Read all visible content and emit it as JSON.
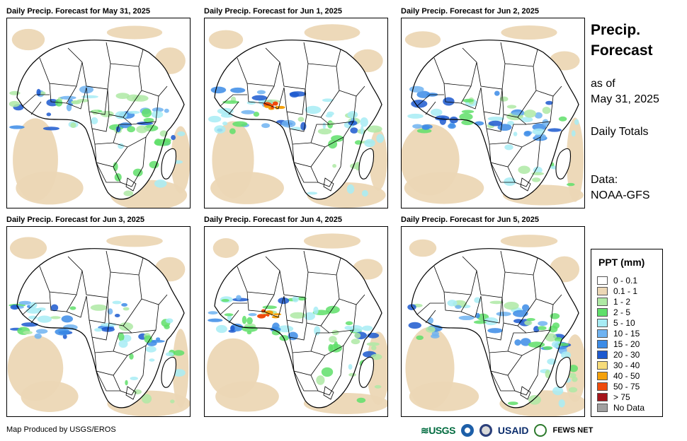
{
  "panels": [
    {
      "title": "Daily Precip. Forecast for May 31, 2025"
    },
    {
      "title": "Daily Precip. Forecast for Jun 1, 2025"
    },
    {
      "title": "Daily Precip. Forecast for Jun 2, 2025"
    },
    {
      "title": "Daily Precip. Forecast for Jun 3, 2025"
    },
    {
      "title": "Daily Precip. Forecast for Jun 4, 2025"
    },
    {
      "title": "Daily Precip. Forecast for Jun 5, 2025"
    }
  ],
  "side": {
    "title_line1": "Precip.",
    "title_line2": "Forecast",
    "asof_line1": "as of",
    "asof_line2": "May 31, 2025",
    "totals": "Daily Totals",
    "data_line1": "Data:",
    "data_line2": "NOAA-GFS"
  },
  "legend": {
    "title": "PPT (mm)",
    "items": [
      {
        "label": "0 - 0.1",
        "color": "#ffffff"
      },
      {
        "label": "0.1 - 1",
        "color": "#ecd7b5"
      },
      {
        "label": "1 - 2",
        "color": "#aee9a4"
      },
      {
        "label": "2 - 5",
        "color": "#5fdf6a"
      },
      {
        "label": "5 - 10",
        "color": "#a7ecf5"
      },
      {
        "label": "10 - 15",
        "color": "#6fb3f1"
      },
      {
        "label": "15 - 20",
        "color": "#3b8be6"
      },
      {
        "label": "20 - 30",
        "color": "#1c59cf"
      },
      {
        "label": "30 - 40",
        "color": "#f7dc7a"
      },
      {
        "label": "40 - 50",
        "color": "#f4a00a"
      },
      {
        "label": "50 - 75",
        "color": "#ef4a0c"
      },
      {
        "label": "> 75",
        "color": "#a4141b"
      },
      {
        "label": "No Data",
        "color": "#a0a0a0"
      }
    ]
  },
  "footer": {
    "credit": "Map Produced by USGS/EROS"
  },
  "logos": {
    "usgs": "≋USGS",
    "usaid": "USAID",
    "fews": "FEWS NET"
  }
}
